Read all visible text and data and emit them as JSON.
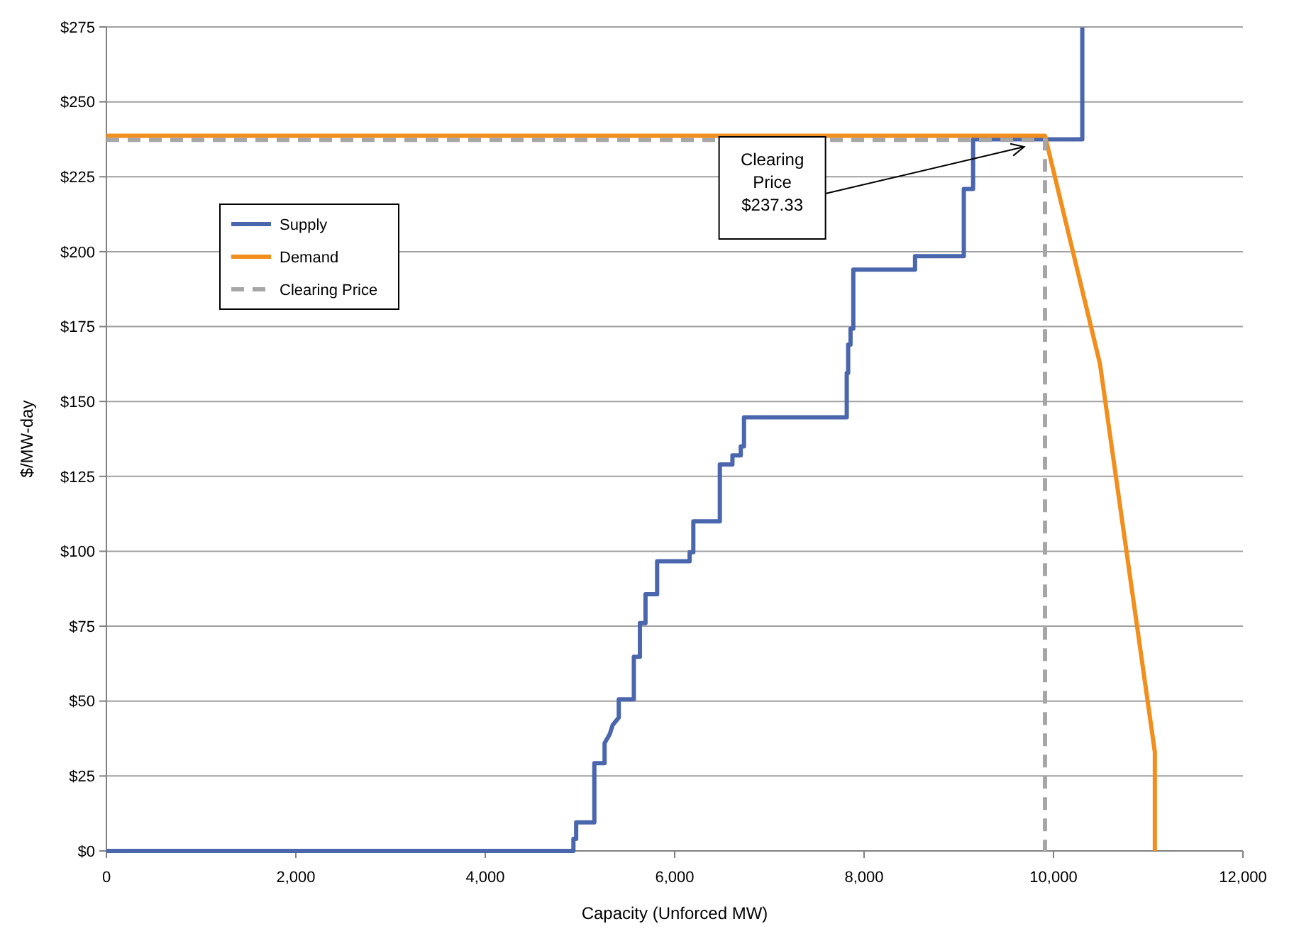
{
  "chart_data": {
    "type": "line",
    "xlabel": "Capacity (Unforced MW)",
    "ylabel": "$/MW-day",
    "xlim": [
      0,
      12000
    ],
    "ylim": [
      0,
      275
    ],
    "xticks": [
      {
        "value": 0,
        "label": "0"
      },
      {
        "value": 2000,
        "label": "2,000"
      },
      {
        "value": 4000,
        "label": "4,000"
      },
      {
        "value": 6000,
        "label": "6,000"
      },
      {
        "value": 8000,
        "label": "8,000"
      },
      {
        "value": 10000,
        "label": "10,000"
      },
      {
        "value": 12000,
        "label": "12,000"
      }
    ],
    "yticks": [
      {
        "value": 0,
        "label": "$0"
      },
      {
        "value": 25,
        "label": "$25"
      },
      {
        "value": 50,
        "label": "$50"
      },
      {
        "value": 75,
        "label": "$75"
      },
      {
        "value": 100,
        "label": "$100"
      },
      {
        "value": 125,
        "label": "$125"
      },
      {
        "value": 150,
        "label": "$150"
      },
      {
        "value": 175,
        "label": "$175"
      },
      {
        "value": 200,
        "label": "$200"
      },
      {
        "value": 225,
        "label": "$225"
      },
      {
        "value": 250,
        "label": "$250"
      },
      {
        "value": 275,
        "label": "$275"
      }
    ],
    "grid": "y",
    "legend": "top left",
    "marker": "none",
    "series": [
      {
        "name": "Supply",
        "color": "#4a66ac",
        "line_style": "solid",
        "x": [
          0,
          4931,
          4931,
          4960,
          4960,
          5152,
          5152,
          5260,
          5260,
          5315,
          5345,
          5410,
          5410,
          5569,
          5569,
          5633,
          5633,
          5692,
          5692,
          5815,
          5815,
          6158,
          6158,
          6197,
          6197,
          6477,
          6477,
          6610,
          6610,
          6698,
          6698,
          6732,
          6732,
          7817,
          7817,
          7832,
          7832,
          7857,
          7857,
          7886,
          7886,
          8538,
          8538,
          9053,
          9053,
          9151,
          9151,
          10304,
          10304
        ],
        "values": [
          0,
          0,
          4,
          4,
          9.5,
          9.5,
          29.3,
          29.3,
          36,
          39,
          42,
          44.5,
          50.6,
          50.6,
          64.8,
          64.8,
          76,
          76,
          85.7,
          85.7,
          96.7,
          96.7,
          99.7,
          99.7,
          110,
          110,
          129,
          129,
          132,
          132,
          135,
          135,
          144.7,
          144.7,
          159.5,
          159.5,
          169,
          169,
          174.3,
          174.3,
          194,
          194,
          198.5,
          198.5,
          220.9,
          220.9,
          237.5,
          237.5,
          274.8
        ]
      },
      {
        "name": "Demand",
        "color": "#f28e1c",
        "line_style": "solid",
        "x": [
          0,
          9910,
          10491,
          11070,
          11070
        ],
        "values": [
          238.7,
          238.7,
          162.5,
          33,
          0
        ]
      },
      {
        "name": "Clearing Price",
        "color": "#a6a6a6",
        "line_style": "dashed",
        "x": [
          0,
          9910,
          9910
        ],
        "values": [
          237.33,
          237.33,
          0
        ]
      }
    ],
    "annotations": [
      {
        "text": "Clearing Price $237.33",
        "x": 9690,
        "y": 235
      }
    ]
  }
}
